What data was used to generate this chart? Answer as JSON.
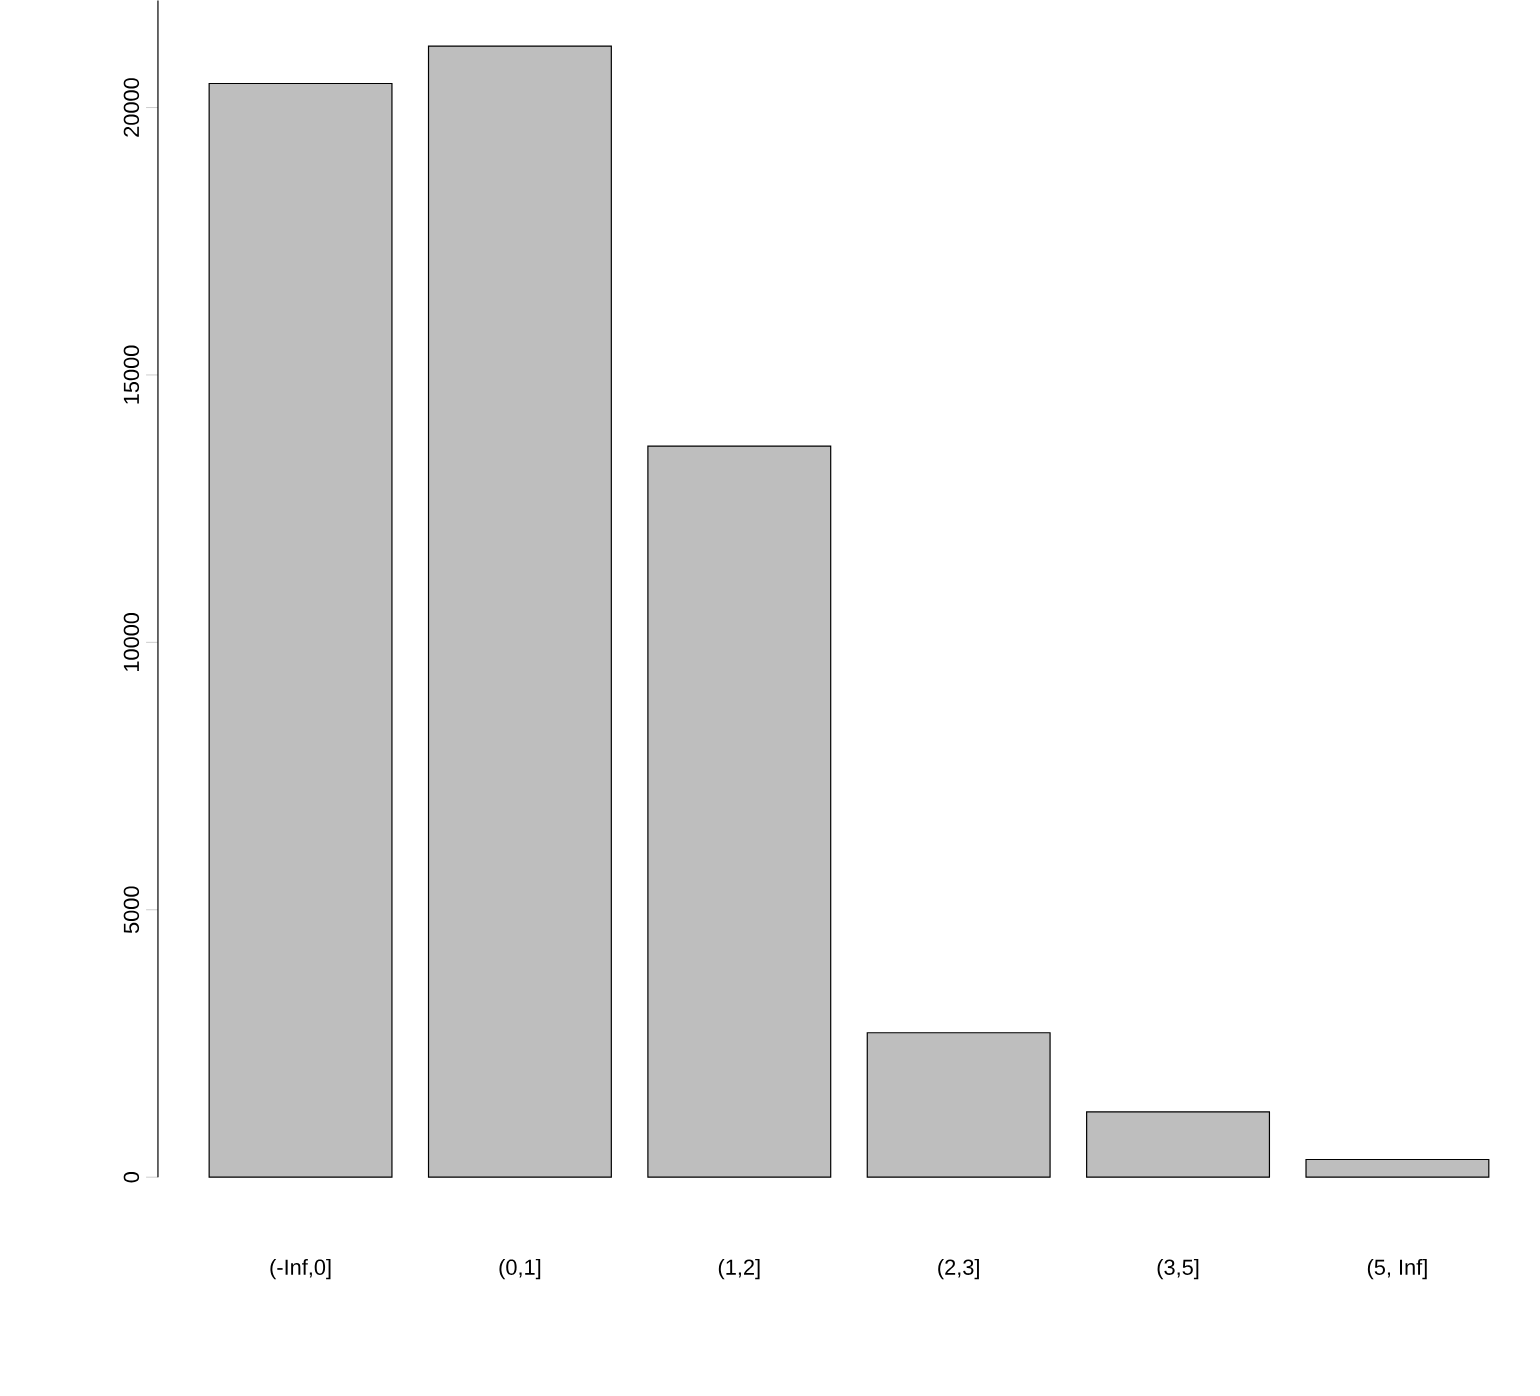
{
  "chart_data": {
    "type": "bar",
    "categories": [
      "(-Inf,0]",
      "(0,1]",
      "(1,2]",
      "(2,3]",
      "(3,5]",
      "(5, Inf]"
    ],
    "values": [
      20450,
      21150,
      13670,
      2700,
      1220,
      330
    ],
    "color": "#bebebe",
    "ylim": [
      0,
      22000
    ],
    "yticks": [
      0,
      5000,
      10000,
      15000,
      20000
    ],
    "grid": false
  }
}
